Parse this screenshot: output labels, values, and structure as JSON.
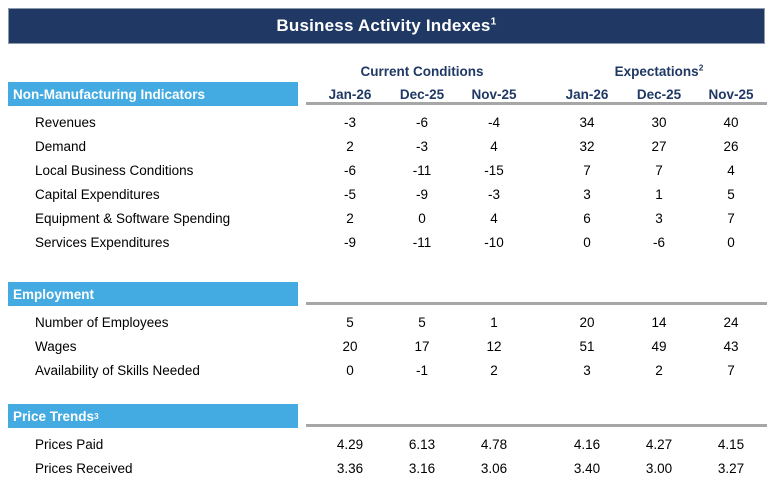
{
  "colors": {
    "navy": "#1F3864",
    "light_blue": "#43AAE2",
    "rule_gray": "#A6A6A6",
    "text_black": "#000000",
    "white": "#FFFFFF"
  },
  "chart_data": {
    "type": "table",
    "title": "Business Activity Indexes",
    "title_sup": "1",
    "column_groups": [
      {
        "label": "Current Conditions",
        "sup": ""
      },
      {
        "label": "Expectations",
        "sup": "2"
      }
    ],
    "columns": [
      "Jan-26",
      "Dec-25",
      "Nov-25",
      "Jan-26",
      "Dec-25",
      "Nov-25"
    ],
    "sections": [
      {
        "header": "Non-Manufacturing Indicators",
        "header_sup": "",
        "rows": [
          {
            "label": "Revenues",
            "values": [
              "-3",
              "-6",
              "-4",
              "34",
              "30",
              "40"
            ]
          },
          {
            "label": "Demand",
            "values": [
              "2",
              "-3",
              "4",
              "32",
              "27",
              "26"
            ]
          },
          {
            "label": "Local Business Conditions",
            "values": [
              "-6",
              "-11",
              "-15",
              "7",
              "7",
              "4"
            ]
          },
          {
            "label": "Capital Expenditures",
            "values": [
              "-5",
              "-9",
              "-3",
              "3",
              "1",
              "5"
            ]
          },
          {
            "label": "Equipment & Software Spending",
            "values": [
              "2",
              "0",
              "4",
              "6",
              "3",
              "7"
            ]
          },
          {
            "label": "Services Expenditures",
            "values": [
              "-9",
              "-11",
              "-10",
              "0",
              "-6",
              "0"
            ]
          }
        ]
      },
      {
        "header": "Employment",
        "header_sup": "",
        "rows": [
          {
            "label": "Number of Employees",
            "values": [
              "5",
              "5",
              "1",
              "20",
              "14",
              "24"
            ]
          },
          {
            "label": "Wages",
            "values": [
              "20",
              "17",
              "12",
              "51",
              "49",
              "43"
            ]
          },
          {
            "label": "Availability of Skills Needed",
            "values": [
              "0",
              "-1",
              "2",
              "3",
              "2",
              "7"
            ]
          }
        ]
      },
      {
        "header": "Price Trends",
        "header_sup": "3",
        "rows": [
          {
            "label": "Prices Paid",
            "values": [
              "4.29",
              "6.13",
              "4.78",
              "4.16",
              "4.27",
              "4.15"
            ]
          },
          {
            "label": "Prices Received",
            "values": [
              "3.36",
              "3.16",
              "3.06",
              "3.40",
              "3.00",
              "3.27"
            ]
          }
        ]
      }
    ]
  }
}
